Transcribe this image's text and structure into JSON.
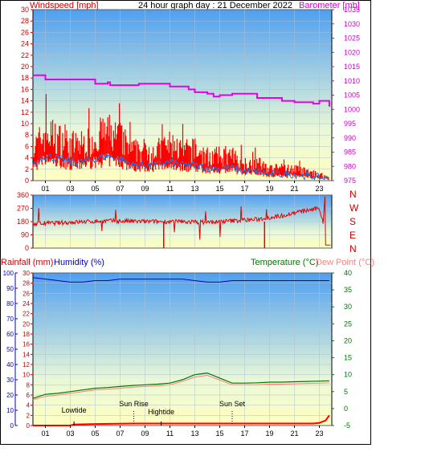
{
  "header": {
    "left_title": "Windspeed [mph]",
    "title": "24 hour graph day : 21 December 2022",
    "right_title": "Barometer [mb]"
  },
  "colors": {
    "wind": "#ff0000",
    "gust_fill": "#ff0000",
    "avg_wind": "#1e78e6",
    "baro": "#e600e6",
    "direction": "#e60000",
    "rain": "#ff0000",
    "humidity": "#0000cc",
    "temperature": "#007700",
    "dewpoint": "#ff8080",
    "sky_top": "#4f9ff0",
    "sky_bottom": "#ffffc0",
    "axis_red": "#cc0000",
    "axis_magenta": "#cc00cc",
    "axis_blue": "#0000cc",
    "axis_green": "#007700"
  },
  "x_ticks": [
    "01",
    "03",
    "05",
    "07",
    "09",
    "11",
    "13",
    "15",
    "17",
    "19",
    "21",
    "23"
  ],
  "labels": {
    "rainfall": "Rainfall (mm)",
    "humidity": "Humidity (%)",
    "temperature": "Temperature (°C)",
    "dewpoint": "Dew Point (°C)"
  },
  "compass": [
    "N",
    "W",
    "S",
    "E",
    "N"
  ],
  "events": [
    "Lowtide",
    "Sun Rise",
    "Hightide",
    "Sun Set"
  ],
  "chart_data": [
    {
      "type": "line",
      "title": "24 hour graph day : 21 December 2022",
      "x_range": [
        0,
        24
      ],
      "series": [
        {
          "name": "Windspeed [mph]",
          "axis": "left",
          "x": [
            0,
            1,
            2,
            3,
            4,
            5,
            6,
            7,
            8,
            9,
            10,
            11,
            12,
            13,
            14,
            15,
            16,
            17,
            18,
            19,
            20,
            21,
            22,
            23,
            23.8
          ],
          "values": [
            5,
            8,
            7,
            6,
            6,
            7,
            8,
            7,
            5,
            5,
            5,
            6,
            5,
            5,
            4,
            4,
            4,
            3,
            3,
            2,
            2,
            2,
            1.5,
            1,
            0.5
          ]
        },
        {
          "name": "Barometer [mb]",
          "axis": "right",
          "x": [
            0,
            0.8,
            1,
            4.5,
            5,
            6,
            6.2,
            8,
            8.5,
            10,
            11,
            12.5,
            13,
            14,
            14.5,
            15,
            16,
            17.8,
            18,
            20,
            21,
            22,
            22.5,
            23,
            23.8
          ],
          "values": [
            1012,
            1012,
            1010.5,
            1010.5,
            1009,
            1009.5,
            1008.5,
            1008.5,
            1009,
            1009,
            1008,
            1007,
            1006,
            1005.5,
            1004.5,
            1005,
            1005.5,
            1005.5,
            1004,
            1003,
            1002.5,
            1002.5,
            1002,
            1003,
            1001
          ]
        }
      ],
      "y_left": {
        "label": "Windspeed [mph]",
        "ticks": [
          0,
          2,
          4,
          6,
          8,
          10,
          12,
          14,
          16,
          18,
          20,
          22,
          24,
          26,
          28,
          30
        ],
        "range": [
          0,
          30
        ]
      },
      "y_right": {
        "label": "Barometer [mb]",
        "ticks": [
          975,
          980,
          985,
          990,
          995,
          1000,
          1005,
          1010,
          1015,
          1020,
          1025,
          1030,
          1035
        ],
        "range": [
          975,
          1035
        ]
      }
    },
    {
      "type": "line",
      "x_range": [
        0,
        24
      ],
      "series": [
        {
          "name": "Direction",
          "x": [
            0,
            3,
            6,
            9,
            12,
            14,
            16,
            18,
            20,
            21,
            22,
            23,
            23.8
          ],
          "values": [
            165,
            175,
            185,
            180,
            180,
            175,
            185,
            195,
            220,
            240,
            255,
            270,
            20
          ]
        }
      ],
      "y_left": {
        "ticks": [
          0,
          90,
          180,
          270,
          360
        ],
        "range": [
          0,
          360
        ]
      },
      "y_right": {
        "ticks": [
          "N",
          "W",
          "S",
          "E",
          "N"
        ]
      }
    },
    {
      "type": "line",
      "x_range": [
        0,
        24
      ],
      "series": [
        {
          "name": "Humidity (%)",
          "axis": "left_percent",
          "x": [
            0,
            1,
            2,
            3,
            4,
            5,
            6,
            7,
            8,
            9,
            10,
            11,
            12,
            13,
            14,
            15,
            16,
            17,
            18,
            19,
            20,
            21,
            22,
            23,
            23.8
          ],
          "values": [
            97,
            96,
            95,
            94,
            94,
            95,
            95,
            96,
            96,
            96,
            96,
            96,
            96,
            95,
            94,
            94,
            95,
            95,
            95,
            95,
            95,
            95,
            95,
            95,
            95
          ]
        },
        {
          "name": "Temperature (°C)",
          "axis": "right",
          "x": [
            0,
            1,
            2,
            3,
            4,
            5,
            6,
            7,
            8,
            9,
            10,
            11,
            12,
            13,
            14,
            15,
            16,
            17,
            18,
            19,
            20,
            21,
            22,
            23,
            23.8
          ],
          "values": [
            3,
            4.2,
            4.5,
            5,
            5.5,
            6,
            6.2,
            6.5,
            6.8,
            7,
            7.2,
            7.5,
            8.5,
            10,
            10.5,
            9,
            7.5,
            7.5,
            7.6,
            7.8,
            7.8,
            7.9,
            8,
            8.1,
            8.2
          ]
        },
        {
          "name": "Dew Point (°C)",
          "axis": "right",
          "x": [
            0,
            1,
            2,
            3,
            4,
            5,
            6,
            7,
            8,
            9,
            10,
            11,
            12,
            13,
            14,
            15,
            16,
            17,
            18,
            19,
            20,
            21,
            22,
            23,
            23.8
          ],
          "values": [
            2.6,
            3.6,
            4,
            4.5,
            5,
            5.5,
            5.7,
            6,
            6.3,
            6.5,
            6.7,
            7,
            8,
            9.3,
            9.8,
            8.4,
            7,
            7,
            7,
            7.2,
            7.2,
            7.3,
            7.4,
            7.5,
            7.6
          ]
        },
        {
          "name": "Rainfall (mm)",
          "axis": "left_mm",
          "x": [
            0,
            3,
            3.3,
            5,
            8,
            10,
            15,
            20,
            22.5,
            23,
            23.5,
            23.8
          ],
          "values": [
            0,
            0,
            0.2,
            0.3,
            0.4,
            0.4,
            0.4,
            0.4,
            0.4,
            0.5,
            1,
            2
          ]
        }
      ],
      "y_left_mm": {
        "label": "Rainfall (mm)",
        "ticks": [
          0,
          2,
          4,
          6,
          8,
          10,
          12,
          14,
          16,
          18,
          20,
          22,
          24,
          26,
          28,
          30
        ],
        "range": [
          0,
          30
        ]
      },
      "y_left_percent": {
        "label": "Humidity (%)",
        "ticks": [
          0,
          10,
          20,
          30,
          40,
          50,
          60,
          70,
          80,
          90,
          100
        ],
        "range": [
          0,
          100
        ]
      },
      "y_right": {
        "label": "Temperature (°C)",
        "ticks": [
          -5,
          0,
          5,
          10,
          15,
          20,
          25,
          30,
          35,
          40
        ],
        "range": [
          -5,
          40
        ]
      },
      "markers": [
        {
          "label": "Lowtide",
          "x": 3.3
        },
        {
          "label": "Sun Rise",
          "x": 8.1
        },
        {
          "label": "Hightide",
          "x": 10.3
        },
        {
          "label": "Sun Set",
          "x": 16.0
        }
      ]
    }
  ]
}
